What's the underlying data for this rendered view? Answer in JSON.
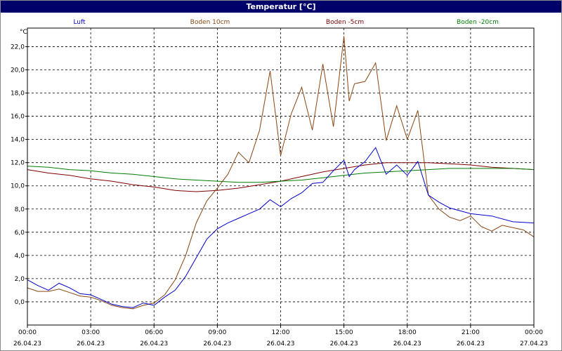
{
  "window": {
    "title": "Temperatur [°C]"
  },
  "chart_data": {
    "type": "line",
    "title": "Temperatur [°C]",
    "ylabel": "°C",
    "ylim": [
      -2.0,
      23.6
    ],
    "yticks": [
      "0,0",
      "2,0",
      "4,0",
      "6,0",
      "8,0",
      "10,0",
      "12,0",
      "14,0",
      "16,0",
      "18,0",
      "20,0",
      "22,0"
    ],
    "ytick_values": [
      0,
      2,
      4,
      6,
      8,
      10,
      12,
      14,
      16,
      18,
      20,
      22
    ],
    "xlim": [
      0,
      24
    ],
    "xtick_values": [
      0,
      3,
      6,
      9,
      12,
      15,
      18,
      21,
      24
    ],
    "xtick_times": [
      "00:00",
      "03:00",
      "06:00",
      "09:00",
      "12:00",
      "15:00",
      "18:00",
      "21:00",
      "00:00"
    ],
    "xtick_dates": [
      "26.04.23",
      "26.04.23",
      "26.04.23",
      "26.04.23",
      "26.04.23",
      "26.04.23",
      "26.04.23",
      "26.04.23",
      "27.04.23"
    ],
    "grid": true,
    "legend_position": "top",
    "series": [
      {
        "name": "Luft",
        "color": "#0000cc",
        "x": [
          0,
          0.5,
          1,
          1.5,
          2,
          2.5,
          3,
          3.5,
          4,
          4.5,
          5,
          5.5,
          6,
          6.5,
          7,
          7.5,
          8,
          8.5,
          9,
          9.5,
          10,
          10.5,
          11,
          11.5,
          12,
          12.5,
          13,
          13.5,
          14,
          14.5,
          15,
          15.25,
          15.5,
          16,
          16.5,
          17,
          17.5,
          18,
          18.5,
          19,
          19.5,
          20,
          21,
          22,
          23,
          24
        ],
        "y": [
          1.9,
          1.4,
          1.0,
          1.6,
          1.2,
          0.7,
          0.6,
          0.2,
          -0.2,
          -0.4,
          -0.5,
          -0.1,
          -0.3,
          0.4,
          1.0,
          2.2,
          3.8,
          5.4,
          6.3,
          6.8,
          7.2,
          7.6,
          8.0,
          8.8,
          8.2,
          8.9,
          9.4,
          10.2,
          10.3,
          11.3,
          12.2,
          10.8,
          11.4,
          12.1,
          13.3,
          11.0,
          11.8,
          10.9,
          12.1,
          9.2,
          8.6,
          8.1,
          7.6,
          7.4,
          6.9,
          6.8
        ]
      },
      {
        "name": "Boden 10cm",
        "color": "#8b4513",
        "x": [
          0,
          0.5,
          1,
          1.5,
          2,
          2.5,
          3,
          3.5,
          4,
          4.5,
          5,
          5.5,
          6,
          6.5,
          7,
          7.5,
          8,
          8.5,
          9,
          9.5,
          10,
          10.5,
          11,
          11.5,
          12,
          12.5,
          13,
          13.5,
          14,
          14.5,
          15,
          15.25,
          15.5,
          16,
          16.5,
          17,
          17.5,
          18,
          18.5,
          19,
          19.5,
          20,
          20.5,
          21,
          21.5,
          22,
          22.5,
          23,
          23.5,
          24
        ],
        "y": [
          1.2,
          0.9,
          0.9,
          1.1,
          0.8,
          0.5,
          0.4,
          0.1,
          -0.3,
          -0.5,
          -0.6,
          -0.3,
          -0.1,
          0.6,
          1.9,
          4.0,
          6.8,
          8.7,
          9.8,
          11.0,
          12.9,
          12.0,
          14.8,
          19.9,
          12.6,
          16.2,
          18.5,
          14.8,
          20.5,
          15.1,
          22.9,
          17.3,
          18.8,
          19.0,
          20.6,
          13.9,
          16.9,
          14.0,
          16.5,
          9.2,
          8.0,
          7.3,
          7.0,
          7.4,
          6.5,
          6.1,
          6.6,
          6.4,
          6.2,
          5.6
        ]
      },
      {
        "name": "Boden -5cm",
        "color": "#800000",
        "x": [
          0,
          1,
          2,
          3,
          4,
          5,
          6,
          7,
          8,
          9,
          10,
          11,
          12,
          13,
          14,
          15,
          16,
          17,
          18,
          19,
          20,
          21,
          22,
          23,
          24
        ],
        "y": [
          11.4,
          11.1,
          10.9,
          10.6,
          10.4,
          10.1,
          9.9,
          9.6,
          9.5,
          9.6,
          9.8,
          10.1,
          10.4,
          10.8,
          11.2,
          11.5,
          11.8,
          12.0,
          12.0,
          12.0,
          11.9,
          11.8,
          11.6,
          11.5,
          11.4
        ]
      },
      {
        "name": "Boden -20cm",
        "color": "#007f00",
        "x": [
          0,
          1,
          2,
          3,
          4,
          5,
          6,
          7,
          8,
          9,
          10,
          11,
          12,
          13,
          14,
          15,
          16,
          17,
          18,
          19,
          20,
          21,
          22,
          23,
          24
        ],
        "y": [
          11.7,
          11.6,
          11.4,
          11.3,
          11.1,
          11.0,
          10.8,
          10.6,
          10.5,
          10.4,
          10.3,
          10.3,
          10.4,
          10.5,
          10.7,
          10.9,
          11.1,
          11.2,
          11.3,
          11.4,
          11.5,
          11.5,
          11.5,
          11.5,
          11.4
        ]
      }
    ]
  }
}
